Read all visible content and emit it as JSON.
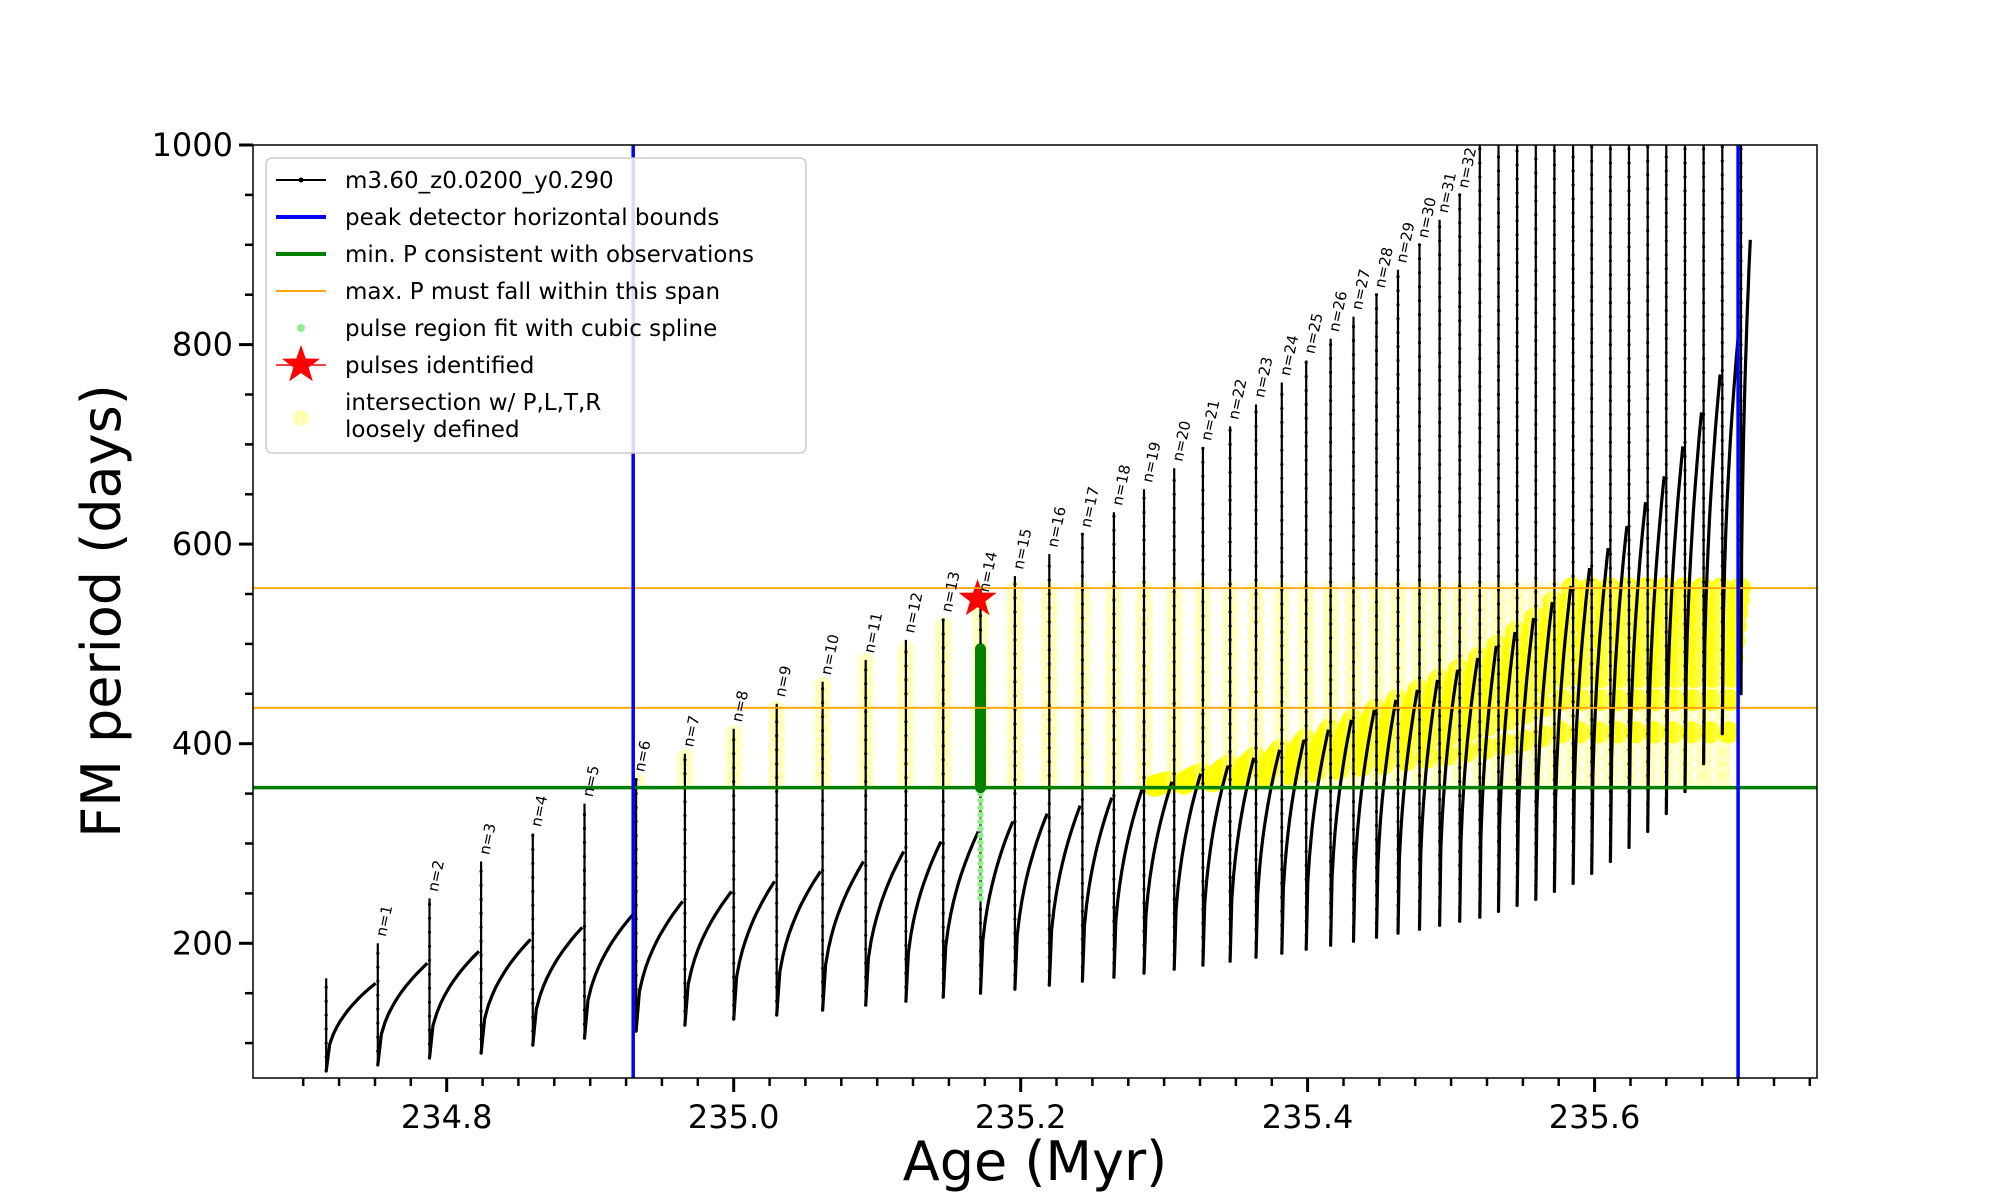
{
  "chart_data": {
    "type": "line",
    "title": "",
    "xlabel": "Age (Myr)",
    "ylabel": "FM period (days)",
    "xlim": [
      234.665,
      235.755
    ],
    "ylim": [
      65,
      1000
    ],
    "x_ticks": [
      "234.8",
      "235.0",
      "235.2",
      "235.4",
      "235.6"
    ],
    "y_ticks": [
      "200",
      "400",
      "600",
      "800",
      "1000"
    ],
    "grid": false,
    "legend_position": "top-left",
    "colors": {
      "track": "#000000",
      "peak_bounds": "#0000ff",
      "min_period": "#008000",
      "max_period_span": "#ffa500",
      "spline_fit": "#90ee90",
      "pulse_marker": "#ff0000",
      "intersection": "#ffff00"
    },
    "legend": [
      {
        "label": "m3.60_z0.0200_y0.290",
        "style": "line-dot",
        "color": "#000000"
      },
      {
        "label": "peak detector horizontal bounds",
        "style": "line",
        "color": "#0000ff"
      },
      {
        "label": "min. P consistent with observations",
        "style": "line",
        "color": "#008000"
      },
      {
        "label": "max. P must fall within this span",
        "style": "thin-line",
        "color": "#ffa500"
      },
      {
        "label": "pulse region fit with cubic spline",
        "style": "dot",
        "color": "#90ee90"
      },
      {
        "label": "pulses identified",
        "style": "star",
        "color": "#ff0000"
      },
      {
        "label": "intersection w/ P,L,T,R",
        "label2": "loosely defined",
        "style": "circle",
        "color": "#ffff80"
      }
    ],
    "vertical_bounds_x": [
      234.93,
      235.7
    ],
    "min_period_y": 356,
    "max_period_span_y": [
      436,
      556
    ],
    "series": [
      {
        "name": "m3.60_z0.0200_y0.290",
        "pulses": [
          {
            "n": 0,
            "x": 234.716,
            "base": 165,
            "min": 72,
            "recover": 160,
            "label": ""
          },
          {
            "n": 1,
            "x": 234.752,
            "base": 200,
            "min": 78,
            "recover": 180,
            "label": "n=1"
          },
          {
            "n": 2,
            "x": 234.788,
            "base": 245,
            "min": 85,
            "recover": 192,
            "label": "n=2"
          },
          {
            "n": 3,
            "x": 234.824,
            "base": 282,
            "min": 90,
            "recover": 204,
            "label": "n=3"
          },
          {
            "n": 4,
            "x": 234.86,
            "base": 310,
            "min": 98,
            "recover": 216,
            "label": "n=4"
          },
          {
            "n": 5,
            "x": 234.896,
            "base": 340,
            "min": 105,
            "recover": 230,
            "label": "n=5"
          },
          {
            "n": 6,
            "x": 234.932,
            "base": 365,
            "min": 112,
            "recover": 242,
            "label": "n=6"
          },
          {
            "n": 7,
            "x": 234.966,
            "base": 390,
            "min": 118,
            "recover": 252,
            "label": "n=7"
          },
          {
            "n": 8,
            "x": 235.0,
            "base": 415,
            "min": 124,
            "recover": 262,
            "label": "n=8"
          },
          {
            "n": 9,
            "x": 235.03,
            "base": 440,
            "min": 128,
            "recover": 272,
            "label": "n=9"
          },
          {
            "n": 10,
            "x": 235.062,
            "base": 462,
            "min": 133,
            "recover": 282,
            "label": "n=10"
          },
          {
            "n": 11,
            "x": 235.092,
            "base": 484,
            "min": 138,
            "recover": 292,
            "label": "n=11"
          },
          {
            "n": 12,
            "x": 235.12,
            "base": 504,
            "min": 142,
            "recover": 302,
            "label": "n=12"
          },
          {
            "n": 13,
            "x": 235.146,
            "base": 525,
            "min": 146,
            "recover": 312,
            "label": "n=13"
          },
          {
            "n": 14,
            "x": 235.172,
            "base": 545,
            "min": 150,
            "recover": 322,
            "label": "n=14"
          },
          {
            "n": 15,
            "x": 235.196,
            "base": 568,
            "min": 154,
            "recover": 330,
            "label": "n=15"
          },
          {
            "n": 16,
            "x": 235.22,
            "base": 590,
            "min": 158,
            "recover": 338,
            "label": "n=16"
          },
          {
            "n": 17,
            "x": 235.243,
            "base": 610,
            "min": 162,
            "recover": 346,
            "label": "n=17"
          },
          {
            "n": 18,
            "x": 235.265,
            "base": 632,
            "min": 166,
            "recover": 354,
            "label": "n=18"
          },
          {
            "n": 19,
            "x": 235.286,
            "base": 655,
            "min": 170,
            "recover": 362,
            "label": "n=19"
          },
          {
            "n": 20,
            "x": 235.307,
            "base": 676,
            "min": 174,
            "recover": 370,
            "label": "n=20"
          },
          {
            "n": 21,
            "x": 235.327,
            "base": 697,
            "min": 178,
            "recover": 378,
            "label": "n=21"
          },
          {
            "n": 22,
            "x": 235.346,
            "base": 718,
            "min": 182,
            "recover": 386,
            "label": "n=22"
          },
          {
            "n": 23,
            "x": 235.364,
            "base": 740,
            "min": 186,
            "recover": 394,
            "label": "n=23"
          },
          {
            "n": 24,
            "x": 235.382,
            "base": 762,
            "min": 190,
            "recover": 404,
            "label": "n=24"
          },
          {
            "n": 25,
            "x": 235.399,
            "base": 784,
            "min": 194,
            "recover": 414,
            "label": "n=25"
          },
          {
            "n": 26,
            "x": 235.416,
            "base": 806,
            "min": 198,
            "recover": 424,
            "label": "n=26"
          },
          {
            "n": 27,
            "x": 235.432,
            "base": 828,
            "min": 202,
            "recover": 434,
            "label": "n=27"
          },
          {
            "n": 28,
            "x": 235.448,
            "base": 850,
            "min": 206,
            "recover": 444,
            "label": "n=28"
          },
          {
            "n": 29,
            "x": 235.463,
            "base": 875,
            "min": 210,
            "recover": 454,
            "label": "n=29"
          },
          {
            "n": 30,
            "x": 235.478,
            "base": 900,
            "min": 214,
            "recover": 464,
            "label": "n=30"
          },
          {
            "n": 31,
            "x": 235.492,
            "base": 925,
            "min": 218,
            "recover": 474,
            "label": "n=31"
          },
          {
            "n": 32,
            "x": 235.506,
            "base": 950,
            "min": 222,
            "recover": 486,
            "label": "n=32"
          },
          {
            "n": 33,
            "x": 235.52,
            "base": 1000,
            "min": 226,
            "recover": 498,
            "label": ""
          },
          {
            "n": 34,
            "x": 235.533,
            "base": 1000,
            "min": 232,
            "recover": 512,
            "label": ""
          },
          {
            "n": 35,
            "x": 235.546,
            "base": 1000,
            "min": 238,
            "recover": 526,
            "label": ""
          },
          {
            "n": 36,
            "x": 235.559,
            "base": 1000,
            "min": 244,
            "recover": 542,
            "label": ""
          },
          {
            "n": 37,
            "x": 235.572,
            "base": 1000,
            "min": 252,
            "recover": 558,
            "label": ""
          },
          {
            "n": 38,
            "x": 235.585,
            "base": 1000,
            "min": 260,
            "recover": 576,
            "label": ""
          },
          {
            "n": 39,
            "x": 235.598,
            "base": 1000,
            "min": 270,
            "recover": 596,
            "label": ""
          },
          {
            "n": 40,
            "x": 235.611,
            "base": 1000,
            "min": 282,
            "recover": 618,
            "label": ""
          },
          {
            "n": 41,
            "x": 235.624,
            "base": 1000,
            "min": 296,
            "recover": 642,
            "label": ""
          },
          {
            "n": 42,
            "x": 235.637,
            "base": 1000,
            "min": 312,
            "recover": 668,
            "label": ""
          },
          {
            "n": 43,
            "x": 235.65,
            "base": 1000,
            "min": 330,
            "recover": 698,
            "label": ""
          },
          {
            "n": 44,
            "x": 235.663,
            "base": 1000,
            "min": 352,
            "recover": 732,
            "label": ""
          },
          {
            "n": 45,
            "x": 235.676,
            "base": 1000,
            "min": 380,
            "recover": 770,
            "label": ""
          },
          {
            "n": 46,
            "x": 235.689,
            "base": 1000,
            "min": 410,
            "recover": 815,
            "label": ""
          },
          {
            "n": 47,
            "x": 235.702,
            "base": 1000,
            "min": 450,
            "recover": 905,
            "label": ""
          }
        ]
      }
    ],
    "spline_fit": {
      "x": 235.172,
      "y_range": [
        245,
        500
      ]
    },
    "green_segment": {
      "x": 235.172,
      "y_range": [
        356,
        495
      ]
    },
    "pulses_identified": [
      {
        "x": 235.17,
        "y": 545
      }
    ]
  }
}
